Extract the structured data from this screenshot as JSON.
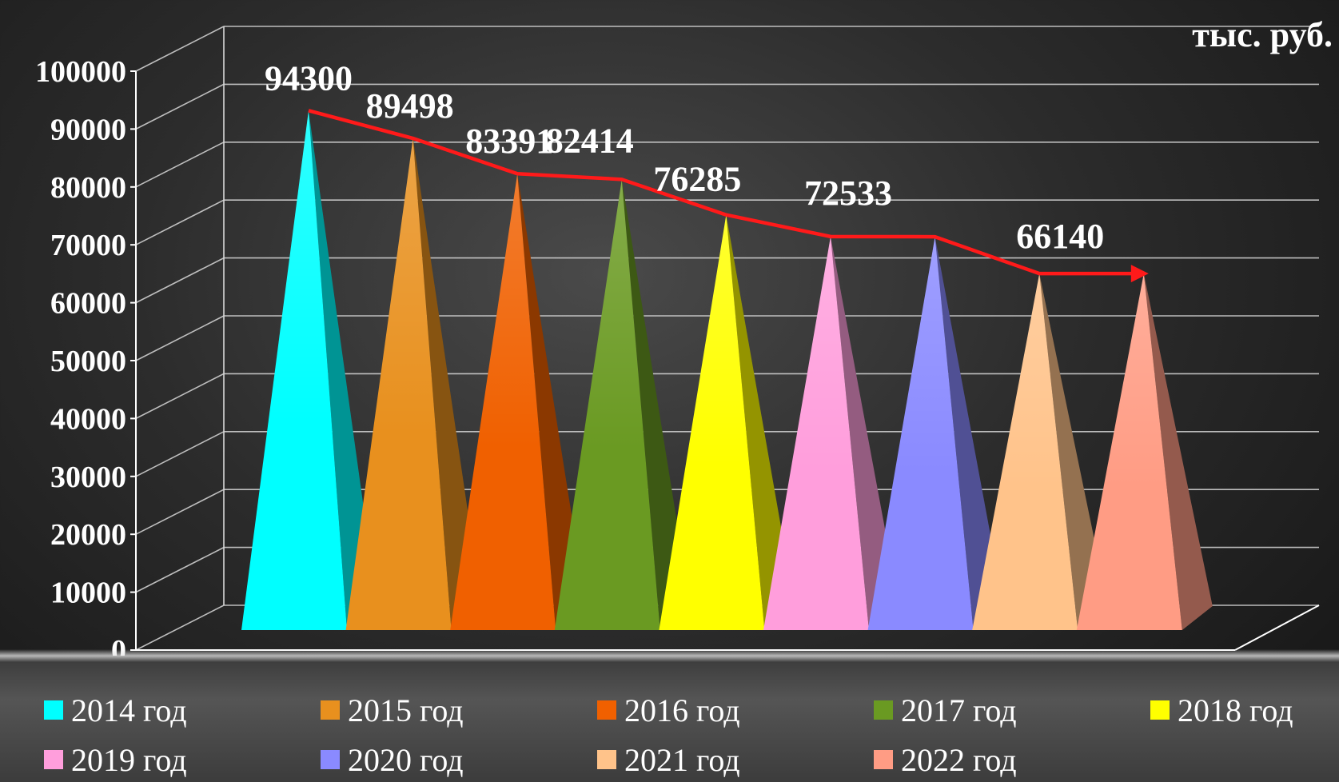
{
  "unit_label": "тыс. руб.",
  "chart_data": {
    "type": "bar",
    "subtype": "3d-pyramid",
    "categories": [
      "2014 год",
      "2015 год",
      "2016 год",
      "2017 год",
      "2018 год",
      "2019 год",
      "2020 год",
      "2021 год",
      "2022 год"
    ],
    "values": [
      94300,
      89498,
      83391,
      82414,
      76285,
      72533,
      72500,
      66140,
      66140
    ],
    "data_labels": [
      "94300",
      "89498",
      "83391",
      "82414",
      "76285",
      "72533",
      "",
      "66140",
      ""
    ],
    "colors": [
      "#00ffff",
      "#e8901e",
      "#f06000",
      "#6a9a22",
      "#ffff00",
      "#ff9edc",
      "#8a8aff",
      "#ffc38a",
      "#ff9c84"
    ],
    "ylim": [
      0,
      100000
    ],
    "yticks": [
      "0",
      "10000",
      "20000",
      "30000",
      "40000",
      "50000",
      "60000",
      "70000",
      "80000",
      "90000",
      "100000"
    ],
    "grid": true,
    "trend_line": {
      "color": "#ff1a1a",
      "arrow": true
    },
    "legend": {
      "position": "bottom",
      "entries": [
        "2014 год",
        "2015 год",
        "2016 год",
        "2017 год",
        "2018 год",
        "2019 год",
        "2020 год",
        "2021 год",
        "2022 год"
      ]
    }
  }
}
